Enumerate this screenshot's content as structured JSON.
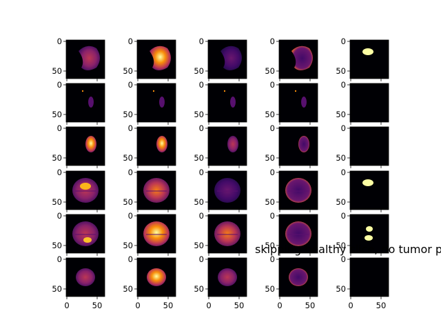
{
  "figure": {
    "rows": 6,
    "cols": 5,
    "colormap": "inferno",
    "panel_background": "#000004",
    "axis_color": "#000000",
    "y_ticks": [
      "0",
      "50"
    ],
    "x_ticks": [
      "0",
      "50"
    ],
    "overlay_text": "skipping healthy slice, no tumor p"
  },
  "panels": [
    [
      "brain-lateral-dim",
      "brain-lateral-bright",
      "brain-lateral-dark",
      "brain-lateral-rim",
      "mask-small-blob"
    ],
    [
      "brain-sparse-dots",
      "brain-sparse-dots",
      "brain-sparse-dots",
      "brain-sparse-dots",
      "mask-empty"
    ],
    [
      "brain-small-oval-bright",
      "brain-small-oval-bright",
      "brain-small-oval-dim",
      "brain-small-oval-rim",
      "mask-empty"
    ],
    [
      "brain-axial-dim",
      "brain-axial-mid",
      "brain-axial-dark",
      "brain-axial-rim",
      "mask-small-blob"
    ],
    [
      "brain-axial-lesion",
      "brain-axial-bright",
      "brain-axial-mid",
      "brain-axial-rim",
      "mask-two-blobs"
    ],
    [
      "brain-axial-small",
      "brain-axial-small-bright",
      "brain-axial-small-dim",
      "brain-axial-small-rim",
      "mask-empty"
    ]
  ]
}
